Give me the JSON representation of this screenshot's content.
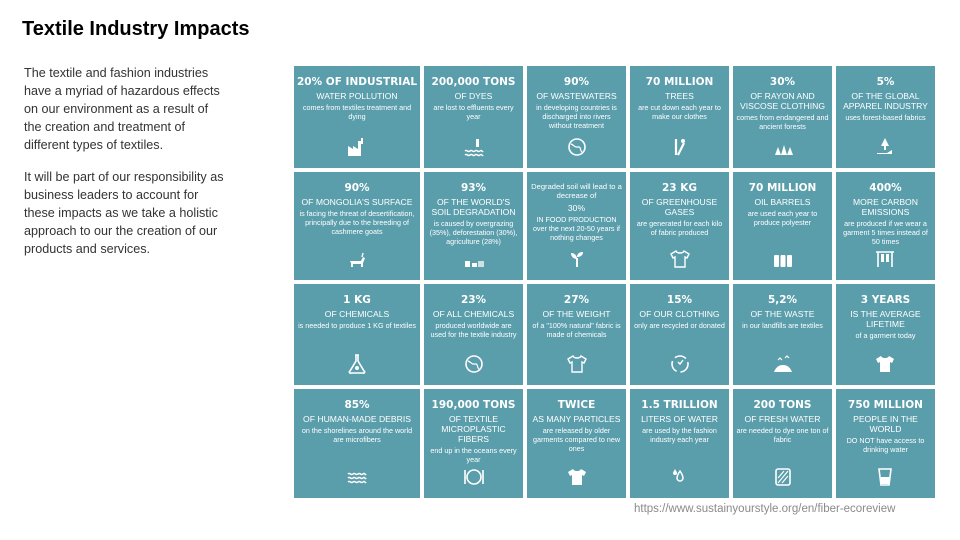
{
  "slide": {
    "title": "Textile Industry Impacts",
    "paragraph_1": "The textile and fashion industries have a myriad of hazardous effects on our environment as a result of the creation and treatment of different types of textiles.",
    "paragraph_2": "It will be part of our responsibility as business leaders to account for these impacts as we take a holistic approach to our the creation of our products and services.",
    "source": "https://www.sustainyourstyle.org/en/fiber-ecoreview"
  },
  "colors": {
    "tile": "#5a9dab",
    "text": "#ffffff"
  },
  "tiles": [
    {
      "head": "20% OF INDUSTRIAL",
      "sub": "WATER POLLUTION",
      "desc": "comes from textiles treatment and dying",
      "icon": "factory-icon"
    },
    {
      "head": "200,000 TONS",
      "sub": "OF DYES",
      "desc": "are lost to effluents every year",
      "icon": "effluent-icon"
    },
    {
      "head": "90%",
      "sub": "OF WASTEWATERS",
      "desc": "in developing countries is discharged into rivers without treatment",
      "icon": "globe-icon"
    },
    {
      "head": "70 MILLION",
      "sub": "TREES",
      "desc": "are cut down each year to make our clothes",
      "icon": "tree-cutting-icon"
    },
    {
      "head": "30%",
      "sub": "OF RAYON AND VISCOSE CLOTHING",
      "desc": "comes from endangered and ancient forests",
      "icon": "forest-icon"
    },
    {
      "head": "5%",
      "sub": "OF THE GLOBAL APPAREL INDUSTRY",
      "desc": "uses forest-based fabrics",
      "icon": "hand-tree-icon"
    },
    {
      "head": "90%",
      "sub": "OF MONGOLIA'S SURFACE",
      "desc": "is facing the threat of desertification, principally due to the breeding of cashmere goats",
      "icon": "goat-icon"
    },
    {
      "head": "93%",
      "sub": "OF THE WORLD'S SOIL DEGRADATION",
      "desc": "is caused by overgrazing (35%), deforestation (30%), agriculture (28%)",
      "icon": "soil-icon"
    },
    {
      "head": "Degraded soil will lead to a decrease of",
      "sub": "30%",
      "desc": "IN FOOD PRODUCTION over the next 20-50 years if nothing changes",
      "icon": "seedling-icon"
    },
    {
      "head": "23 KG",
      "sub": "OF GREENHOUSE GASES",
      "desc": "are generated for each kilo of fabric produced",
      "icon": "tshirt-tag-icon"
    },
    {
      "head": "70 MILLION",
      "sub": "OIL BARRELS",
      "desc": "are used each year to produce polyester",
      "icon": "barrels-icon"
    },
    {
      "head": "400%",
      "sub": "MORE CARBON EMISSIONS",
      "desc": "are produced if we wear a garment 5 times instead of 50 times",
      "icon": "clothes-rack-icon"
    },
    {
      "head": "1 KG",
      "sub": "OF CHEMICALS",
      "desc": "is needed to produce 1 KG of textiles",
      "icon": "flask-icon"
    },
    {
      "head": "23%",
      "sub": "OF ALL CHEMICALS",
      "desc": "produced worldwide are used for the textile industry",
      "icon": "globe-icon"
    },
    {
      "head": "27%",
      "sub": "OF THE WEIGHT",
      "desc": "of a \"100% natural\" fabric is made of chemicals",
      "icon": "tshirt-tag-icon"
    },
    {
      "head": "15%",
      "sub": "OF OUR CLOTHING",
      "desc": "only are recycled or donated",
      "icon": "recycle-icon"
    },
    {
      "head": "5,2%",
      "sub": "OF THE WASTE",
      "desc": "in our landfills are textiles",
      "icon": "landfill-icon"
    },
    {
      "head": "3 YEARS",
      "sub": "IS THE AVERAGE LIFETIME",
      "desc": "of a garment today",
      "icon": "tshirt-icon"
    },
    {
      "head": "85%",
      "sub": "OF HUMAN-MADE DEBRIS",
      "desc": "on the shorelines around the world are microfibers",
      "icon": "waves-icon"
    },
    {
      "head": "190,000 TONS",
      "sub": "OF TEXTILE MICROPLASTIC FIBERS",
      "desc": "end up in the oceans every year",
      "icon": "plate-icon"
    },
    {
      "head": "TWICE",
      "sub": "AS MANY PARTICLES",
      "desc": "are released by older garments compared to new ones",
      "icon": "tshirt-icon"
    },
    {
      "head": "1.5 TRILLION",
      "sub": "LITERS OF WATER",
      "desc": "are used by the fashion industry each year",
      "icon": "water-drops-icon"
    },
    {
      "head": "200 TONS",
      "sub": "OF FRESH WATER",
      "desc": "are needed to dye one ton of fabric",
      "icon": "fabric-roll-icon"
    },
    {
      "head": "750 MILLION",
      "sub": "PEOPLE IN THE WORLD",
      "desc": "DO NOT have access to drinking water",
      "icon": "water-glass-icon"
    }
  ]
}
